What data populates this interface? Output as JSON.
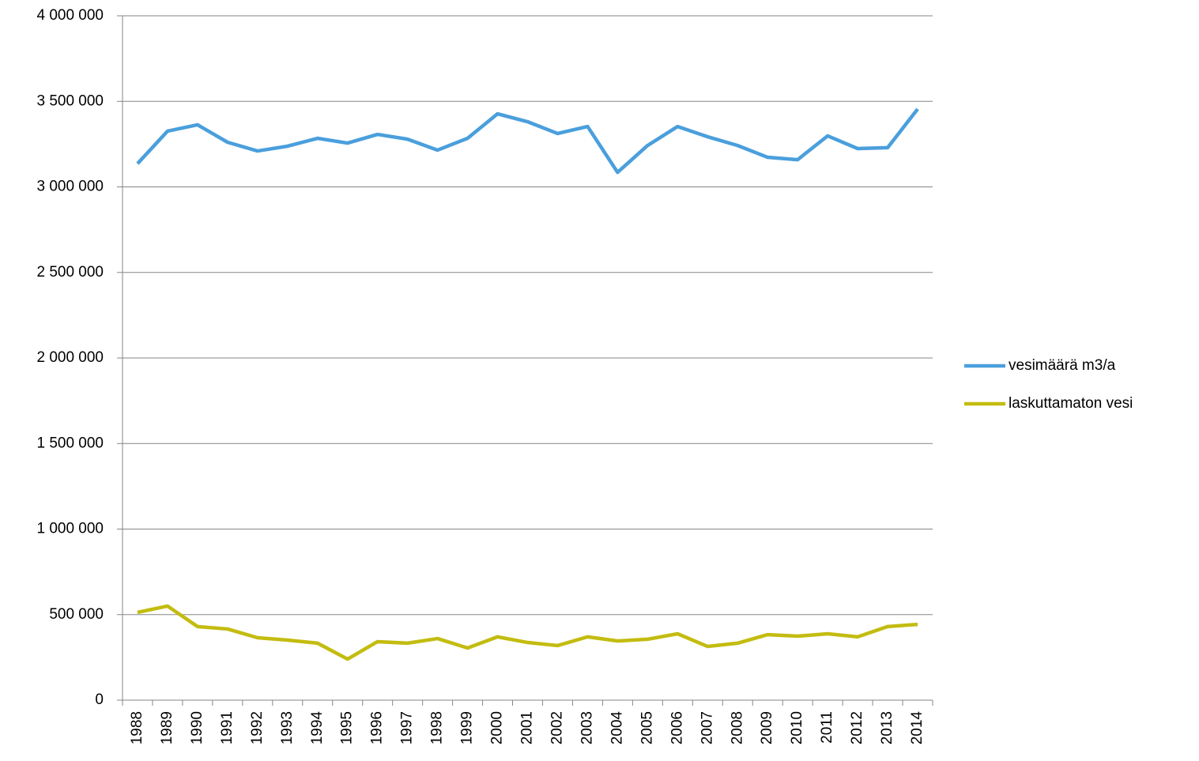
{
  "chart_data": {
    "type": "line",
    "categories": [
      "1988",
      "1989",
      "1990",
      "1991",
      "1992",
      "1993",
      "1994",
      "1995",
      "1996",
      "1997",
      "1998",
      "1999",
      "2000",
      "2001",
      "2002",
      "2003",
      "2004",
      "2005",
      "2006",
      "2007",
      "2008",
      "2009",
      "2010",
      "2011",
      "2012",
      "2013",
      "2014"
    ],
    "series": [
      {
        "name": "vesimäärä m3/a",
        "color": "#4a9fdc",
        "values": [
          3136000,
          3326000,
          3363000,
          3261000,
          3210000,
          3238000,
          3284000,
          3256000,
          3307000,
          3279000,
          3215000,
          3284000,
          3427000,
          3381000,
          3312000,
          3353000,
          3085000,
          3242000,
          3353000,
          3293000,
          3242000,
          3173000,
          3159000,
          3298000,
          3224000,
          3229000,
          3455000
        ]
      },
      {
        "name": "laskuttamaton vesi",
        "color": "#c3bc10",
        "values": [
          513000,
          550000,
          430000,
          416000,
          365000,
          351000,
          333000,
          240000,
          342000,
          333000,
          360000,
          305000,
          370000,
          337000,
          319000,
          370000,
          346000,
          356000,
          388000,
          314000,
          333000,
          383000,
          374000,
          388000,
          370000,
          430000,
          443000
        ]
      }
    ],
    "ylim": [
      0,
      4000000
    ],
    "yticks": [
      0,
      {
        "value": 500000,
        "label": "500 000"
      },
      {
        "value": 1000000,
        "label": "1 000 000"
      },
      {
        "value": 1500000,
        "label": "1 500 000"
      },
      {
        "value": 2000000,
        "label": "2 000 000"
      },
      {
        "value": 2500000,
        "label": "2 500 000"
      },
      {
        "value": 3000000,
        "label": "3 000 000"
      },
      {
        "value": 3500000,
        "label": "3 500 000"
      },
      {
        "value": 4000000,
        "label": "4 000 000"
      }
    ],
    "grid": true,
    "legend": "right"
  }
}
